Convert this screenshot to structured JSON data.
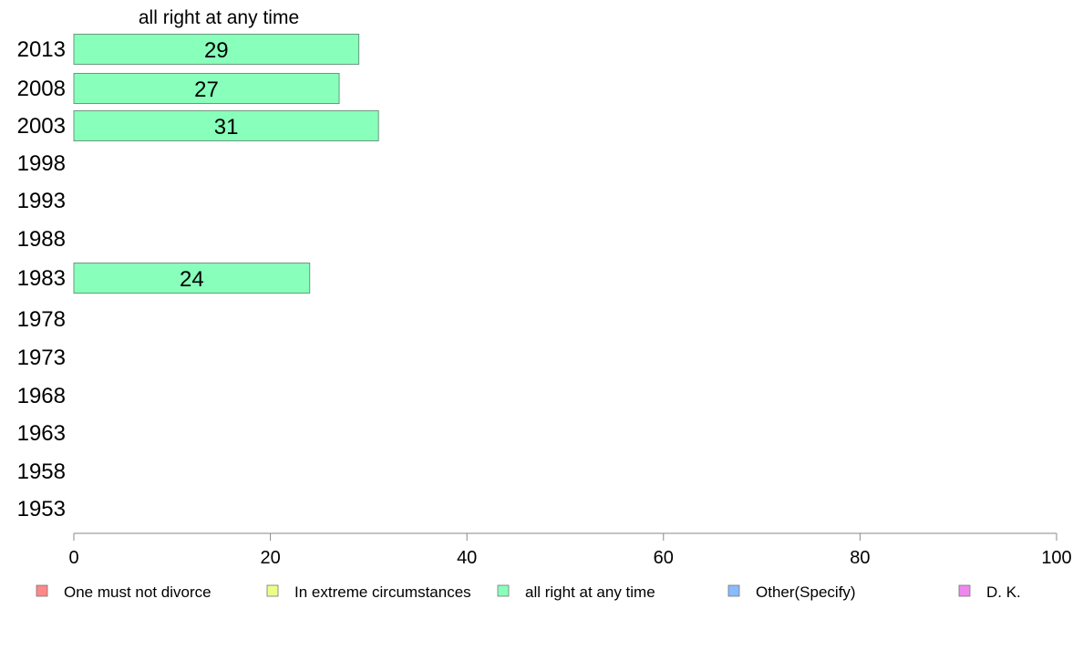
{
  "chart_data": {
    "type": "bar",
    "orientation": "horizontal",
    "title": "all right at any time",
    "categories": [
      "2013",
      "2008",
      "2003",
      "1998",
      "1993",
      "1988",
      "1983",
      "1978",
      "1973",
      "1968",
      "1963",
      "1958",
      "1953"
    ],
    "series": [
      {
        "name": "all right at any time",
        "color": "#88ffbb",
        "values": [
          29,
          27,
          31,
          null,
          null,
          null,
          24,
          null,
          null,
          null,
          null,
          null,
          null
        ]
      }
    ],
    "xlim": [
      0,
      100
    ],
    "xticks": [
      0,
      20,
      40,
      60,
      80,
      100
    ],
    "grid": false,
    "legend_position": "bottom",
    "legend": [
      {
        "label": "One must not divorce",
        "color": "#ff8888"
      },
      {
        "label": "In extreme circumstances",
        "color": "#eeff88"
      },
      {
        "label": "all right at any time",
        "color": "#88ffbb"
      },
      {
        "label": "Other(Specify)",
        "color": "#88bbff"
      },
      {
        "label": "D. K.",
        "color": "#ee88ee"
      }
    ]
  }
}
